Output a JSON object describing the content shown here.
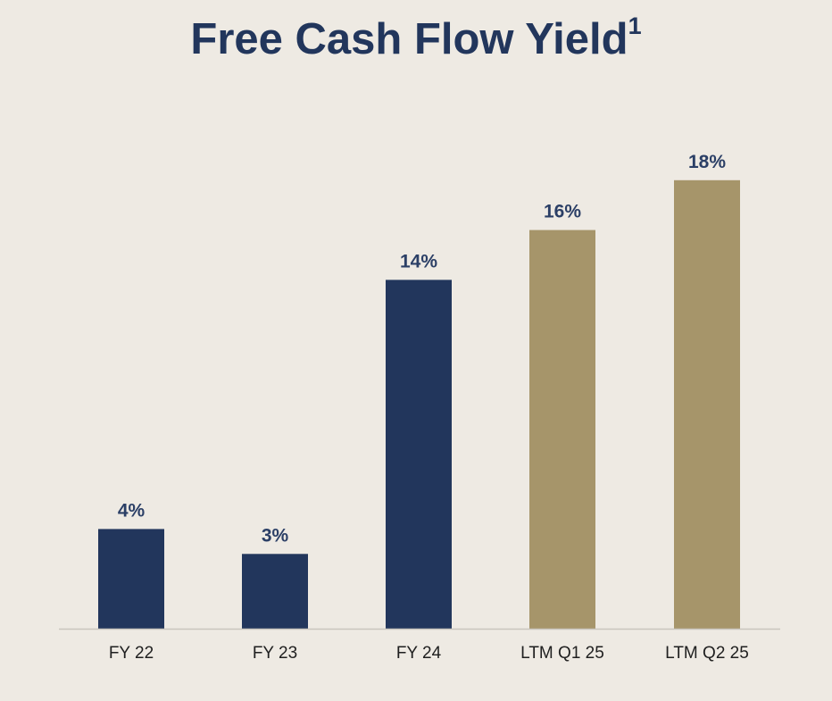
{
  "chart_data": {
    "type": "bar",
    "title": "Free Cash Flow Yield",
    "title_superscript": "1",
    "categories": [
      "FY 22",
      "FY 23",
      "FY 24",
      "LTM Q1 25",
      "LTM Q2 25"
    ],
    "values": [
      4,
      3,
      14,
      16,
      18
    ],
    "data_labels": [
      "4%",
      "3%",
      "14%",
      "16%",
      "18%"
    ],
    "value_unit": "%",
    "ylim": [
      0,
      20
    ],
    "grid": false,
    "legend": "none",
    "colors": {
      "background": "#eeeae3",
      "title": "#22365c",
      "fiscal_year": "#22365c",
      "ltm": "#a6956a",
      "label": "#2b3f66",
      "axis": "#c9c5bd"
    },
    "bar_colors": [
      "#22365c",
      "#22365c",
      "#22365c",
      "#a6956a",
      "#a6956a"
    ]
  }
}
